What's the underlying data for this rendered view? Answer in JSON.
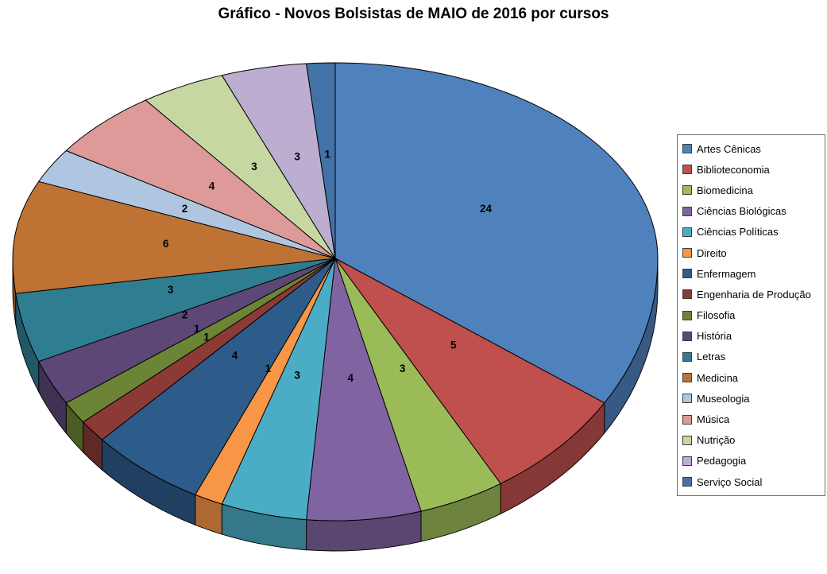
{
  "chart_data": {
    "type": "pie",
    "style": "3d",
    "title": "Gráfico - Novos Bolsistas de MAIO de 2016 por cursos",
    "total": 70,
    "start_angle_deg": 0,
    "direction": "clockwise",
    "legend_position": "right",
    "data_labels": "values",
    "slices": [
      {
        "label": "Artes Cênicas",
        "value": 24,
        "color": "#4F81BD"
      },
      {
        "label": "Biblioteconomia",
        "value": 5,
        "color": "#C0504D"
      },
      {
        "label": "Biomedicina",
        "value": 3,
        "color": "#9BBB59"
      },
      {
        "label": "Ciências Biológicas",
        "value": 4,
        "color": "#8064A2"
      },
      {
        "label": "Ciências Políticas",
        "value": 3,
        "color": "#4BACC6"
      },
      {
        "label": "Direito",
        "value": 1,
        "color": "#F79646"
      },
      {
        "label": "Enfermagem",
        "value": 4,
        "color": "#2E5C8A"
      },
      {
        "label": "Engenharia de Produção",
        "value": 1,
        "color": "#8B3A36"
      },
      {
        "label": "Filosofia",
        "value": 1,
        "color": "#6B8435"
      },
      {
        "label": "História",
        "value": 2,
        "color": "#5C4776"
      },
      {
        "label": "Letras",
        "value": 3,
        "color": "#2F7D91"
      },
      {
        "label": "Medicina",
        "value": 6,
        "color": "#BE7334"
      },
      {
        "label": "Museologia",
        "value": 2,
        "color": "#AFC6E2"
      },
      {
        "label": "Música",
        "value": 4,
        "color": "#DE9A98"
      },
      {
        "label": "Nutrição",
        "value": 3,
        "color": "#C6D7A2"
      },
      {
        "label": "Pedagogia",
        "value": 3,
        "color": "#BCAED0"
      },
      {
        "label": "Serviço Social",
        "value": 1,
        "color": "#4372A7"
      }
    ]
  }
}
